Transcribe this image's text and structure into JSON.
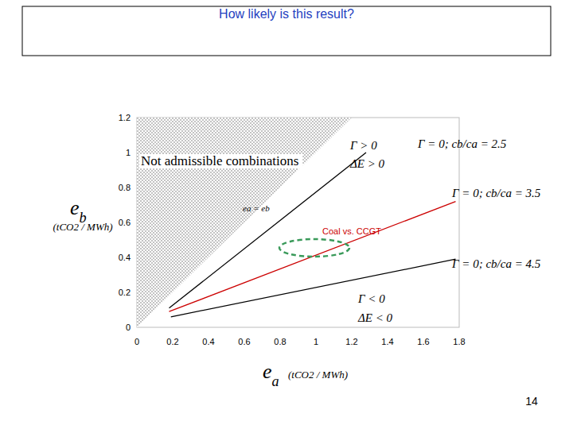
{
  "chart_data": {
    "type": "line",
    "title": "How likely is this result?",
    "x_label": "ea",
    "x_unit": "(tCO2 / MWh)",
    "y_label": "eb",
    "y_unit": "(tCO2 / MWh)",
    "xlim": [
      0,
      1.8
    ],
    "ylim": [
      0,
      1.2
    ],
    "xticks": [
      0,
      0.2,
      0.4,
      0.6,
      0.8,
      1,
      1.2,
      1.4,
      1.6,
      1.8
    ],
    "yticks": [
      0,
      0.2,
      0.4,
      0.6,
      0.8,
      1,
      1.2
    ],
    "grid": false,
    "series": [
      {
        "name": "Γ = 0; cb/ca = 2.5",
        "color": "#000000",
        "x": [
          0.18,
          1.28
        ],
        "values": [
          0.11,
          1.0
        ]
      },
      {
        "name": "Γ = 0; cb/ca = 3.5",
        "color": "#cc0000",
        "x": [
          0.18,
          1.78
        ],
        "values": [
          0.09,
          0.72
        ]
      },
      {
        "name": "Γ = 0; cb/ca = 4.5",
        "color": "#000000",
        "x": [
          0.19,
          1.78
        ],
        "values": [
          0.06,
          0.39
        ]
      }
    ],
    "annotations": [
      {
        "text": "Not admissible combinations"
      },
      {
        "text": "ea = eb"
      },
      {
        "text": "Γ > 0"
      },
      {
        "text": "ΔE > 0"
      },
      {
        "text": "Γ < 0"
      },
      {
        "text": "ΔE < 0"
      },
      {
        "text": "Coal vs. CCGT",
        "color": "#cc0000"
      }
    ],
    "page_number": "14"
  }
}
